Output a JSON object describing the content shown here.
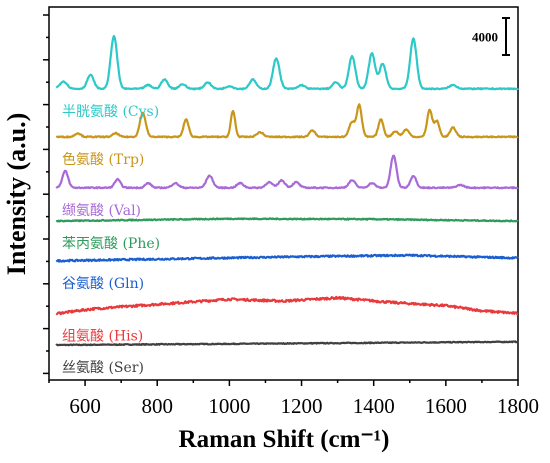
{
  "chart_data": {
    "type": "line",
    "xlabel": "Raman Shift (cm⁻¹)",
    "ylabel": "Intensity (a.u.)",
    "xlim": [
      500,
      1800
    ],
    "xticks": [
      "600",
      "800",
      "1000",
      "1200",
      "1400",
      "1600",
      "1800"
    ],
    "xtick_values": [
      600,
      800,
      1000,
      1200,
      1400,
      1600,
      1800
    ],
    "yticks_labeled": false,
    "scale_bar": {
      "label": "4000",
      "intensity": 4000
    },
    "grid": false,
    "series": [
      {
        "name": "丝氨酸 (Ser)",
        "color": "#404040",
        "baseline": 0,
        "noise": 45,
        "drift": [
          [
            520,
            0
          ],
          [
            1000,
            120
          ],
          [
            1800,
            350
          ]
        ],
        "peaks": []
      },
      {
        "name": "组氨酸 (His)",
        "color": "#e8393b",
        "baseline": 3400,
        "noise": 120,
        "drift": [
          [
            520,
            0
          ],
          [
            620,
            500
          ],
          [
            800,
            1000
          ],
          [
            1000,
            1550
          ],
          [
            1150,
            1350
          ],
          [
            1300,
            1700
          ],
          [
            1450,
            1200
          ],
          [
            1600,
            850
          ],
          [
            1700,
            300
          ],
          [
            1800,
            0
          ]
        ],
        "peaks": []
      },
      {
        "name": "谷氨酸 (Gln)",
        "color": "#1a5ecf",
        "baseline": 9100,
        "noise": 90,
        "drift": [
          [
            520,
            0
          ],
          [
            900,
            250
          ],
          [
            1200,
            450
          ],
          [
            1500,
            600
          ],
          [
            1800,
            300
          ]
        ],
        "peaks": []
      },
      {
        "name": "苯丙氨酸 (Phe)",
        "color": "#2e9a5c",
        "baseline": 13400,
        "noise": 55,
        "drift": [
          [
            520,
            0
          ],
          [
            1000,
            250
          ],
          [
            1400,
            200
          ],
          [
            1800,
            0
          ]
        ],
        "peaks": []
      },
      {
        "name": "缬氨酸 (Val)",
        "color": "#a86ad6",
        "baseline": 17000,
        "noise": 60,
        "drift": [
          [
            520,
            0
          ],
          [
            1800,
            0
          ]
        ],
        "peaks": [
          [
            545,
            1800,
            8
          ],
          [
            690,
            900,
            8
          ],
          [
            775,
            500,
            8
          ],
          [
            850,
            500,
            9
          ],
          [
            945,
            1300,
            9
          ],
          [
            1030,
            500,
            9
          ],
          [
            1110,
            600,
            9
          ],
          [
            1145,
            800,
            9
          ],
          [
            1185,
            600,
            9
          ],
          [
            1340,
            800,
            9
          ],
          [
            1395,
            500,
            9
          ],
          [
            1455,
            3500,
            8
          ],
          [
            1510,
            1300,
            8
          ],
          [
            1640,
            300,
            10
          ]
        ]
      },
      {
        "name": "色氨酸 (Trp)",
        "color": "#c9961a",
        "baseline": 22500,
        "noise": 60,
        "drift": [
          [
            520,
            0
          ],
          [
            1800,
            0
          ]
        ],
        "peaks": [
          [
            580,
            400,
            8
          ],
          [
            685,
            400,
            8
          ],
          [
            760,
            2600,
            8
          ],
          [
            880,
            1900,
            7
          ],
          [
            1010,
            2800,
            6
          ],
          [
            1085,
            500,
            9
          ],
          [
            1230,
            700,
            8
          ],
          [
            1340,
            1600,
            8
          ],
          [
            1360,
            3400,
            7
          ],
          [
            1420,
            1900,
            7
          ],
          [
            1460,
            600,
            8
          ],
          [
            1490,
            800,
            8
          ],
          [
            1555,
            2900,
            7
          ],
          [
            1575,
            1700,
            7
          ],
          [
            1620,
            1000,
            8
          ]
        ]
      },
      {
        "name": "半胱氨酸 (Cys)",
        "color": "#2dc9c9",
        "baseline": 27700,
        "noise": 60,
        "drift": [
          [
            520,
            0
          ],
          [
            1800,
            0
          ]
        ],
        "peaks": [
          [
            540,
            800,
            10
          ],
          [
            615,
            1500,
            9
          ],
          [
            680,
            5700,
            9
          ],
          [
            775,
            400,
            9
          ],
          [
            820,
            1000,
            9
          ],
          [
            870,
            500,
            9
          ],
          [
            940,
            700,
            9
          ],
          [
            1000,
            300,
            9
          ],
          [
            1065,
            1000,
            9
          ],
          [
            1130,
            3300,
            9
          ],
          [
            1200,
            400,
            9
          ],
          [
            1295,
            700,
            9
          ],
          [
            1340,
            3500,
            9
          ],
          [
            1395,
            3800,
            9
          ],
          [
            1425,
            2700,
            9
          ],
          [
            1510,
            5400,
            9
          ],
          [
            1620,
            400,
            10
          ]
        ]
      }
    ]
  }
}
